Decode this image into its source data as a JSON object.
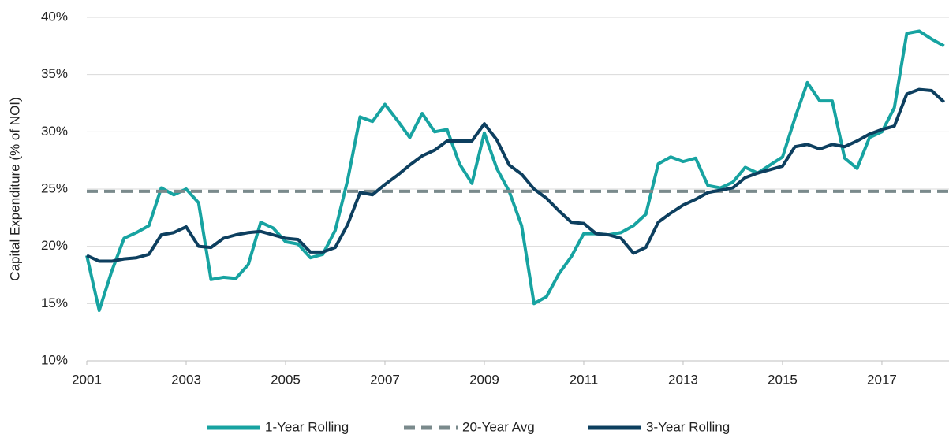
{
  "chart_data": {
    "type": "line",
    "ylabel": "Capital Expenditure (% of NOI)",
    "x": [
      2001,
      2001.25,
      2001.5,
      2001.75,
      2002,
      2002.25,
      2002.5,
      2002.75,
      2003,
      2003.25,
      2003.5,
      2003.75,
      2004,
      2004.25,
      2004.5,
      2004.75,
      2005,
      2005.25,
      2005.5,
      2005.75,
      2006,
      2006.25,
      2006.5,
      2006.75,
      2007,
      2007.25,
      2007.5,
      2007.75,
      2008,
      2008.25,
      2008.5,
      2008.75,
      2009,
      2009.25,
      2009.5,
      2009.75,
      2010,
      2010.25,
      2010.5,
      2010.75,
      2011,
      2011.25,
      2011.5,
      2011.75,
      2012,
      2012.25,
      2012.5,
      2012.75,
      2013,
      2013.25,
      2013.5,
      2013.75,
      2014,
      2014.25,
      2014.5,
      2014.75,
      2015,
      2015.25,
      2015.5,
      2015.75,
      2016,
      2016.25,
      2016.5,
      2016.75,
      2017,
      2017.25,
      2017.5,
      2017.75,
      2018,
      2018.25
    ],
    "series": [
      {
        "name": "1-Year Rolling",
        "color": "#17a3a1",
        "values": [
          19.2,
          14.4,
          17.8,
          20.7,
          21.2,
          21.8,
          25.1,
          24.5,
          25.0,
          23.8,
          17.1,
          17.3,
          17.2,
          18.4,
          22.1,
          21.6,
          20.4,
          20.2,
          19.0,
          19.3,
          21.4,
          25.8,
          31.3,
          30.9,
          32.4,
          31.0,
          29.5,
          31.6,
          30.0,
          30.2,
          27.2,
          25.5,
          29.9,
          26.8,
          24.8,
          21.8,
          15.0,
          15.6,
          17.6,
          19.1,
          21.1,
          21.1,
          21.0,
          21.2,
          21.8,
          22.8,
          27.2,
          27.8,
          27.4,
          27.7,
          25.3,
          25.1,
          25.6,
          26.9,
          26.4,
          27.1,
          27.8,
          31.2,
          34.3,
          32.7,
          32.7,
          27.7,
          26.8,
          29.5,
          30.0,
          32.1,
          38.6,
          38.8,
          38.1,
          37.5
        ]
      },
      {
        "name": "20-Year Avg",
        "color": "#7a8a8c",
        "value": 24.8,
        "dashed": true
      },
      {
        "name": "3-Year Rolling",
        "color": "#0d3f5f",
        "values": [
          19.2,
          18.7,
          18.7,
          18.9,
          19.0,
          19.3,
          21.0,
          21.2,
          21.7,
          20.0,
          19.9,
          20.7,
          21.0,
          21.2,
          21.3,
          21.0,
          20.7,
          20.6,
          19.5,
          19.5,
          19.9,
          21.9,
          24.7,
          24.5,
          25.4,
          26.2,
          27.1,
          27.9,
          28.4,
          29.2,
          29.2,
          29.2,
          30.7,
          29.3,
          27.1,
          26.3,
          25.0,
          24.2,
          23.1,
          22.1,
          22.0,
          21.1,
          21.0,
          20.7,
          19.4,
          19.9,
          22.1,
          22.9,
          23.6,
          24.1,
          24.7,
          24.9,
          25.1,
          26.0,
          26.4,
          26.7,
          27.0,
          28.7,
          28.9,
          28.5,
          28.9,
          28.7,
          29.2,
          29.8,
          30.2,
          30.5,
          33.3,
          33.7,
          33.6,
          32.6
        ]
      }
    ],
    "xlim": [
      2001,
      2018.35
    ],
    "xticks": [
      2001,
      2003,
      2005,
      2007,
      2009,
      2011,
      2013,
      2015,
      2017
    ],
    "ylim": [
      10,
      40
    ],
    "yticks": [
      {
        "value": 10,
        "label": "10%"
      },
      {
        "value": 15,
        "label": "15%"
      },
      {
        "value": 20,
        "label": "20%"
      },
      {
        "value": 25,
        "label": "25%"
      },
      {
        "value": 30,
        "label": "30%"
      },
      {
        "value": 35,
        "label": "35%"
      },
      {
        "value": 40,
        "label": "40%"
      }
    ],
    "grid": true,
    "legend": "bottom"
  }
}
